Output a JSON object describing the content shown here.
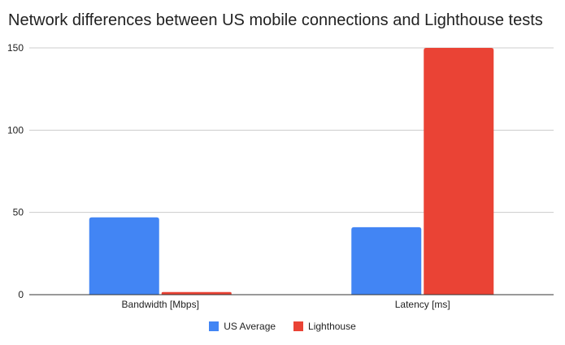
{
  "chart_data": {
    "type": "bar",
    "title": "Network differences between US mobile connections and Lighthouse tests",
    "categories": [
      "Bandwidth [Mbps]",
      "Latency [ms]"
    ],
    "series": [
      {
        "name": "US Average",
        "values": [
          47,
          41
        ],
        "color": "#4285f4"
      },
      {
        "name": "Lighthouse",
        "values": [
          1.6,
          150
        ],
        "color": "#ea4335"
      }
    ],
    "ylim": [
      0,
      150
    ],
    "yticks": [
      0,
      50,
      100,
      150
    ],
    "grid": true,
    "legend_position": "bottom"
  }
}
